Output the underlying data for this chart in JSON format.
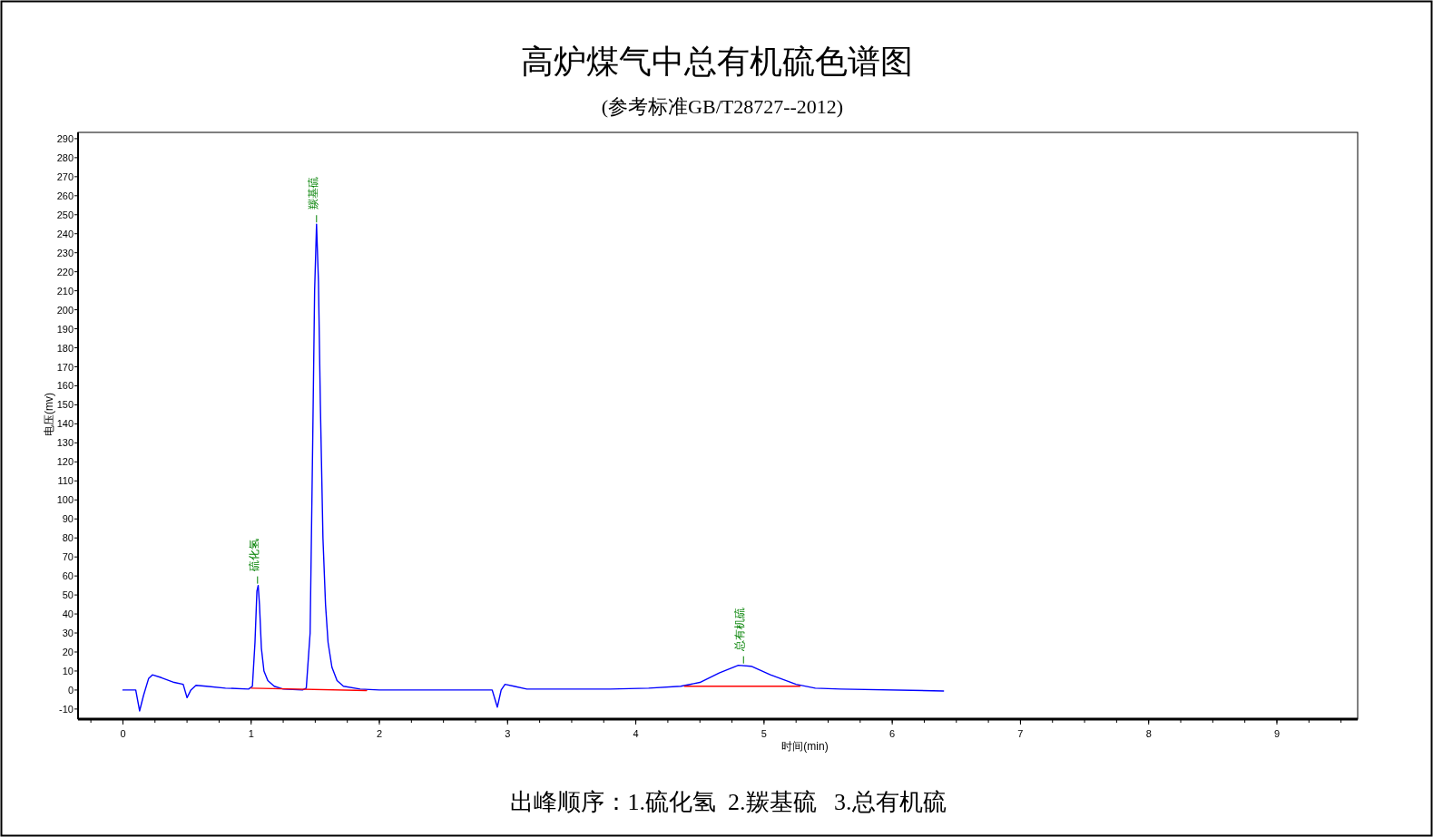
{
  "chart_data": {
    "type": "line",
    "title": "高炉煤气中总有机硫色谱图",
    "subtitle": "(参考标准GB/T28727--2012)",
    "xlabel": "时间(min)",
    "ylabel": "电压(mv)",
    "xlim": [
      -0.35,
      9.63
    ],
    "ylim": [
      -15.3,
      293.3
    ],
    "xticks": [
      0,
      1,
      2,
      3,
      4,
      5,
      6,
      7,
      8,
      9
    ],
    "yticks": [
      -10,
      0,
      10,
      20,
      30,
      40,
      50,
      60,
      70,
      80,
      90,
      100,
      110,
      120,
      130,
      140,
      150,
      160,
      170,
      180,
      190,
      200,
      210,
      220,
      230,
      240,
      250,
      260,
      270,
      280,
      290
    ],
    "grid": false,
    "marker": "none",
    "line_style": "solid",
    "series": [
      {
        "color": "#0000ff",
        "x": [
          0,
          0.1,
          0.13,
          0.16,
          0.2,
          0.23,
          0.3,
          0.4,
          0.47,
          0.5,
          0.53,
          0.57,
          0.65,
          0.8,
          0.98,
          1.01,
          1.03,
          1.045,
          1.055,
          1.065,
          1.08,
          1.1,
          1.13,
          1.18,
          1.25,
          1.4,
          1.43,
          1.46,
          1.48,
          1.495,
          1.51,
          1.525,
          1.54,
          1.56,
          1.58,
          1.6,
          1.63,
          1.67,
          1.72,
          1.85,
          2.0,
          2.88,
          2.92,
          2.95,
          2.98,
          3.05,
          3.15,
          3.8,
          4.1,
          4.35,
          4.5,
          4.65,
          4.8,
          4.9,
          5.05,
          5.25,
          5.4,
          5.6,
          6.4
        ],
        "values": [
          0,
          0,
          -11,
          -3,
          6,
          8,
          6.5,
          4,
          3,
          -4,
          0,
          2.5,
          2,
          1,
          0.5,
          2,
          25,
          52,
          55,
          45,
          22,
          10,
          5,
          2,
          0.5,
          0,
          1,
          30,
          130,
          210,
          245,
          215,
          150,
          80,
          45,
          25,
          12,
          5,
          2,
          0.5,
          0,
          0,
          -9,
          0,
          3,
          2,
          0.5,
          0.5,
          1,
          2,
          4,
          9,
          13,
          12.5,
          8,
          3,
          1,
          0.5,
          -0.5
        ]
      },
      {
        "color": "#ff0000",
        "x": [
          1.0,
          1.9
        ],
        "values": [
          1,
          -0.3
        ]
      },
      {
        "color": "#ff0000",
        "x": [
          4.38,
          5.28
        ],
        "values": [
          2,
          2
        ]
      }
    ],
    "annotations": [
      {
        "text": "硫化氢",
        "x": 1.05,
        "y": 55
      },
      {
        "text": "羰基硫",
        "x": 1.51,
        "y": 245
      },
      {
        "text": "总有机硫",
        "x": 4.84,
        "y": 13
      },
      "出峰顺序：1.硫化氢  2.羰基硫   3.总有机硫"
    ]
  }
}
